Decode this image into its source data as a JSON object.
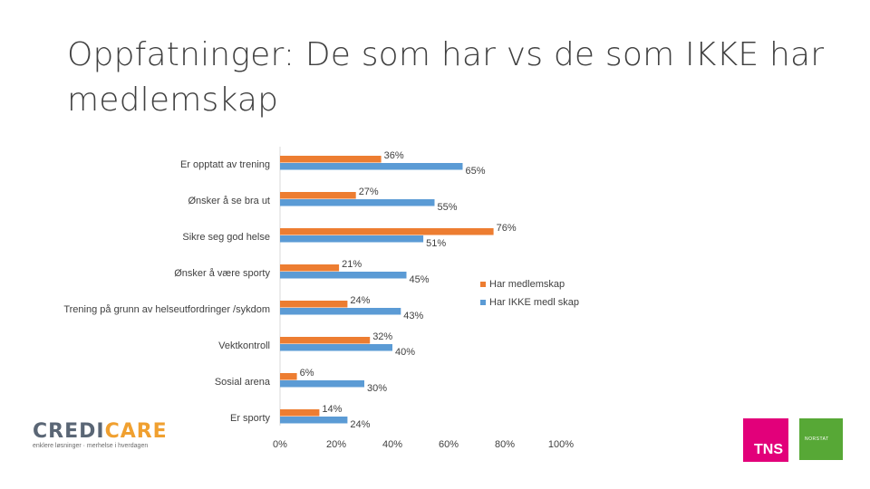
{
  "slide": {
    "title": "Oppfatninger: De som har vs de som IKKE har medlemskap"
  },
  "chart_data": {
    "type": "bar",
    "orientation": "horizontal",
    "categories": [
      "Er opptatt av trening",
      "Ønsker å se bra ut",
      "Sikre seg god helse",
      "Ønsker å være sporty",
      "Trening på grunn av helseutfordringer /sykdom",
      "Vektkontroll",
      "Sosial arena",
      "Er sporty"
    ],
    "series": [
      {
        "name": "Har medlemskap",
        "values": [
          36,
          27,
          76,
          21,
          24,
          32,
          6,
          14
        ],
        "color": "#ed7d31"
      },
      {
        "name": "Har IKKE medl skap",
        "values": [
          65,
          55,
          51,
          45,
          43,
          40,
          30,
          24
        ],
        "color": "#5b9bd5"
      }
    ],
    "xlim": [
      0,
      100
    ],
    "ticks": [
      "0%",
      "20%",
      "40%",
      "60%",
      "80%",
      "100%"
    ],
    "value_suffix": "%",
    "legend_position": "right",
    "grid": false
  },
  "logos": {
    "credicare_prefix": "CREDI",
    "credicare_accent": "CARE",
    "credicare_tagline": "enklere løsninger · merhelse i hverdagen",
    "tns": "TNS",
    "green_mark": "NORSTAT"
  }
}
